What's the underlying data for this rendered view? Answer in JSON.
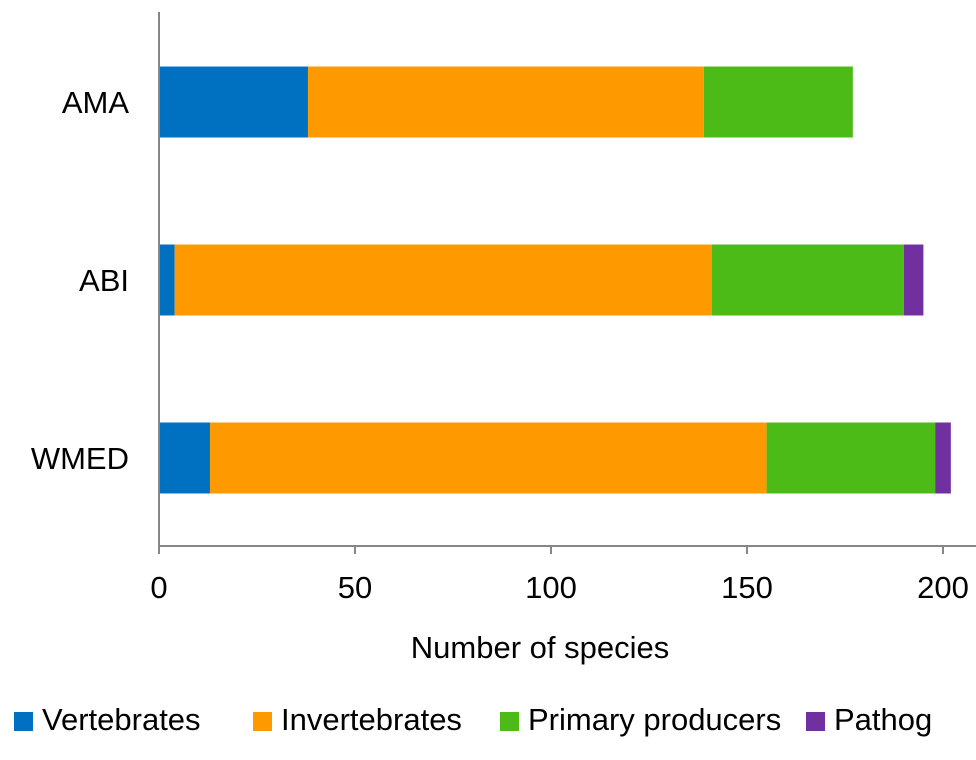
{
  "chart_data": {
    "type": "bar",
    "orientation": "horizontal",
    "stacked": true,
    "categories": [
      "AMA",
      "ABI",
      "WMED"
    ],
    "series": [
      {
        "name": "Vertebrates",
        "color": "#0070C0",
        "values": [
          38,
          4,
          13
        ]
      },
      {
        "name": "Invertebrates",
        "color": "#FF9900",
        "values": [
          101,
          137,
          142
        ]
      },
      {
        "name": "Primary producers",
        "color": "#4CBB17",
        "values": [
          38,
          49,
          43
        ]
      },
      {
        "name": "Pathog",
        "color": "#7030A0",
        "values": [
          0,
          5,
          4
        ]
      }
    ],
    "xlabel": "Number of species",
    "ylabel": "",
    "xlim": [
      0,
      200
    ],
    "xticks": [
      "0",
      "50",
      "100",
      "150",
      "200"
    ],
    "grid": false,
    "legend": "bottom"
  }
}
